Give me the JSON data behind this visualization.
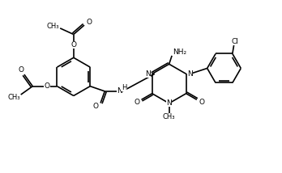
{
  "background_color": "#ffffff",
  "line_color": "#000000",
  "text_color": "#000000",
  "line_width": 1.2,
  "font_size": 6.5,
  "figsize": [
    3.48,
    2.14
  ],
  "dpi": 100,
  "xlim": [
    0,
    10
  ],
  "ylim": [
    0,
    6
  ]
}
